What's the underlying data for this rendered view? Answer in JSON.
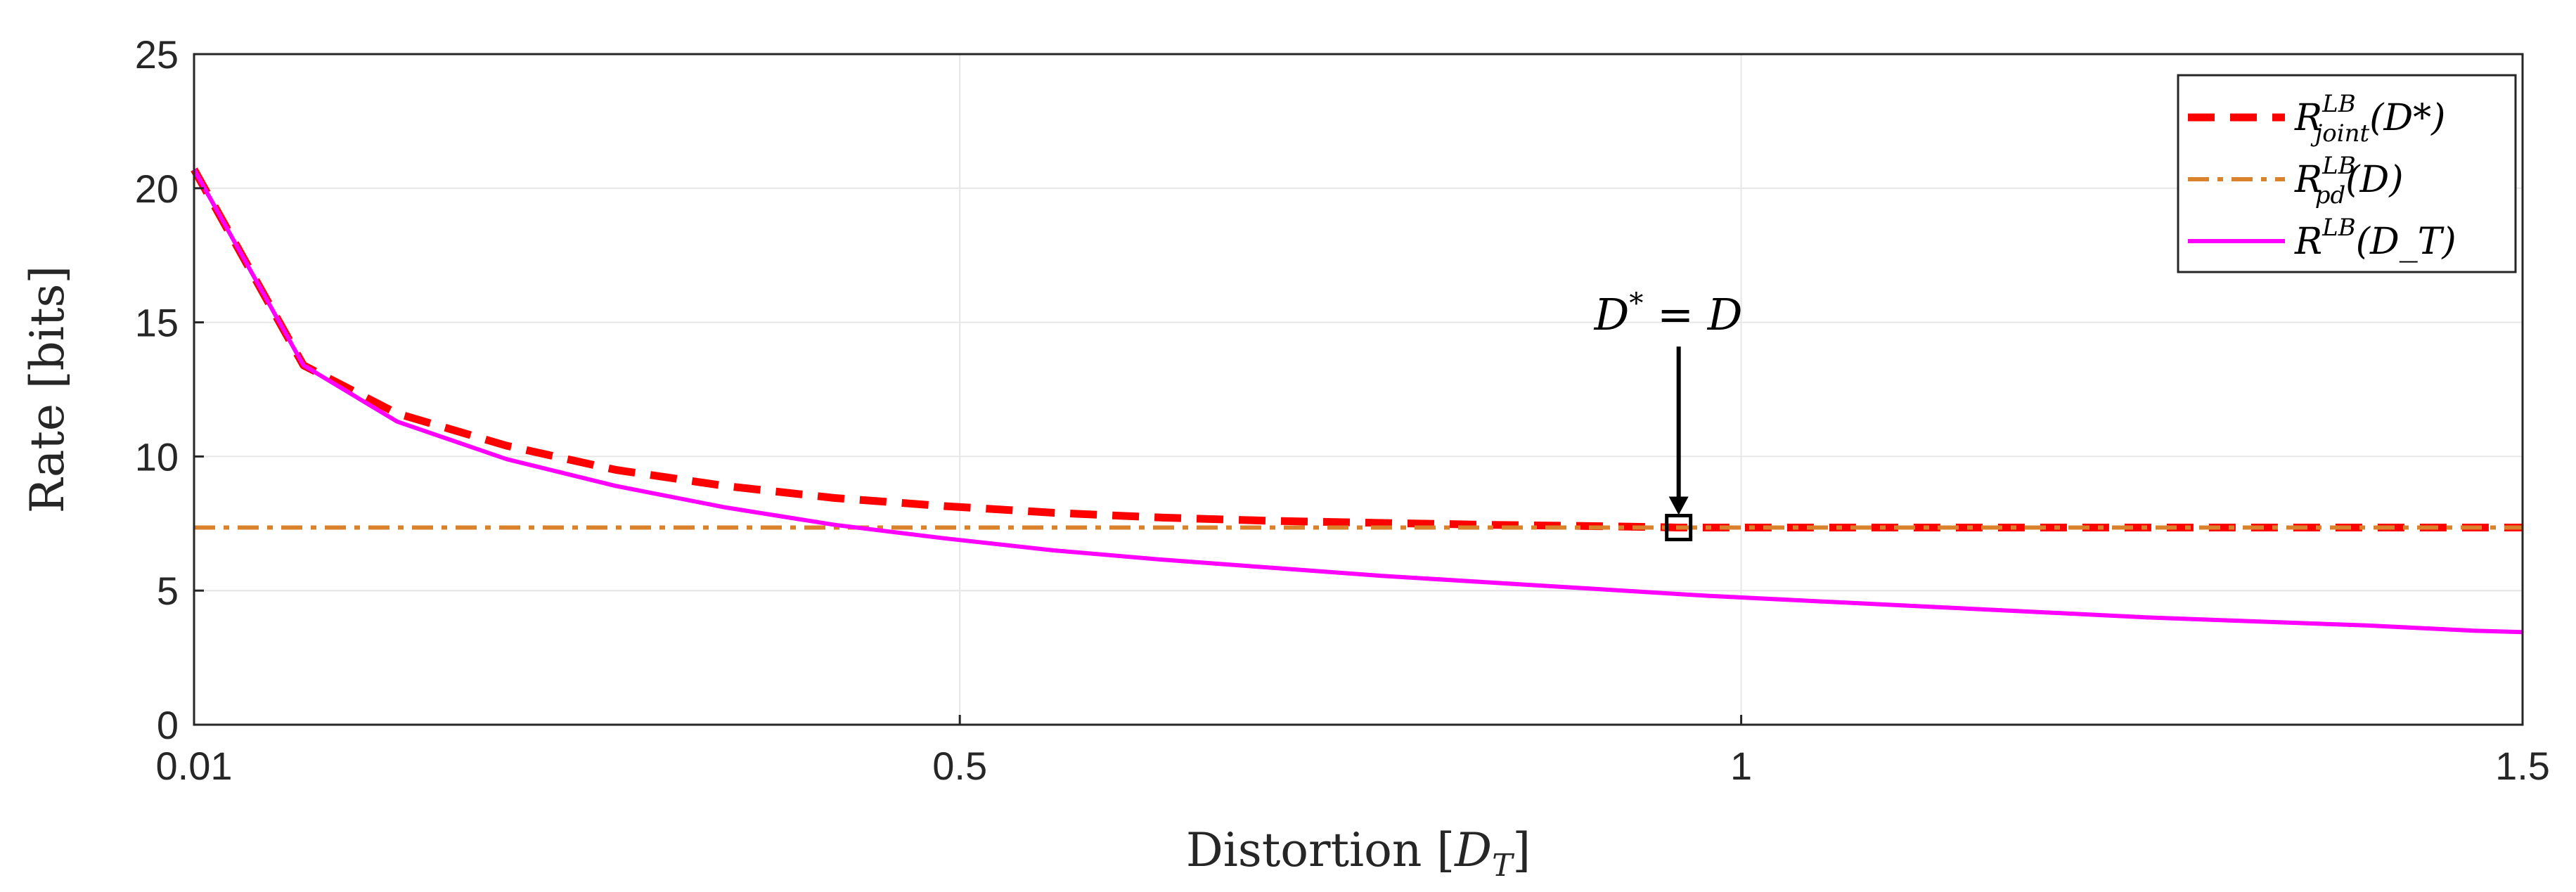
{
  "chart_data": {
    "type": "line",
    "xlabel": {
      "main": "Distortion ",
      "bracket_open": "[",
      "var": "D",
      "sub": "T",
      "bracket_close": "]"
    },
    "ylabel": "Rate [bits]",
    "xlim": [
      0.01,
      1.5
    ],
    "ylim": [
      0,
      25
    ],
    "grid": true,
    "xticks": [
      {
        "value": 0.01,
        "label": "0.01"
      },
      {
        "value": 0.5,
        "label": "0.5"
      },
      {
        "value": 1.0,
        "label": "1"
      },
      {
        "value": 1.5,
        "label": "1.5"
      }
    ],
    "yticks": [
      {
        "value": 0,
        "label": "0"
      },
      {
        "value": 5,
        "label": "5"
      },
      {
        "value": 10,
        "label": "10"
      },
      {
        "value": 15,
        "label": "15"
      },
      {
        "value": 20,
        "label": "20"
      },
      {
        "value": 25,
        "label": "25"
      }
    ],
    "series": [
      {
        "name": "R_joint^LB(D*)",
        "legend": {
          "base": "R",
          "sup": "LB",
          "sub": "joint",
          "arg": "(D*)"
        },
        "color": "#ff0000",
        "style": "dashed",
        "x": [
          0.01,
          0.08,
          0.14,
          0.21,
          0.28,
          0.35,
          0.42,
          0.49,
          0.56,
          0.63,
          0.7,
          0.77,
          0.84,
          0.91,
          0.96,
          1.05,
          1.12,
          1.19,
          1.26,
          1.33,
          1.4,
          1.47,
          1.5
        ],
        "y": [
          20.7,
          13.4,
          11.6,
          10.4,
          9.5,
          8.9,
          8.45,
          8.15,
          7.9,
          7.72,
          7.6,
          7.52,
          7.45,
          7.4,
          7.35,
          7.35,
          7.35,
          7.35,
          7.35,
          7.35,
          7.35,
          7.35,
          7.35
        ]
      },
      {
        "name": "R_pd^LB(D)",
        "legend": {
          "base": "R",
          "sup": "LB",
          "sub": "pd",
          "arg": "(D)"
        },
        "color": "#d9822b",
        "style": "dashdot",
        "x": [
          0.01,
          1.5
        ],
        "y": [
          7.35,
          7.35
        ]
      },
      {
        "name": "R^LB(D_T)",
        "legend": {
          "base": "R",
          "sup": "LB",
          "sub": "",
          "arg": "(D_T)"
        },
        "color": "#ff00ff",
        "style": "solid",
        "x": [
          0.01,
          0.08,
          0.14,
          0.21,
          0.28,
          0.35,
          0.42,
          0.49,
          0.56,
          0.63,
          0.7,
          0.77,
          0.84,
          0.91,
          0.98,
          1.05,
          1.12,
          1.19,
          1.26,
          1.33,
          1.4,
          1.47,
          1.5
        ],
        "y": [
          20.7,
          13.4,
          11.3,
          9.9,
          8.9,
          8.1,
          7.45,
          6.95,
          6.5,
          6.15,
          5.85,
          5.55,
          5.3,
          5.05,
          4.8,
          4.6,
          4.4,
          4.2,
          4.0,
          3.85,
          3.7,
          3.5,
          3.45
        ]
      }
    ],
    "annotation": {
      "text_lhs": "D*",
      "text_eq": " = ",
      "text_rhs": "D",
      "point": {
        "x": 0.96,
        "y": 7.35
      },
      "arrow_from_y": 14.1
    },
    "legend_position": "top-right"
  }
}
